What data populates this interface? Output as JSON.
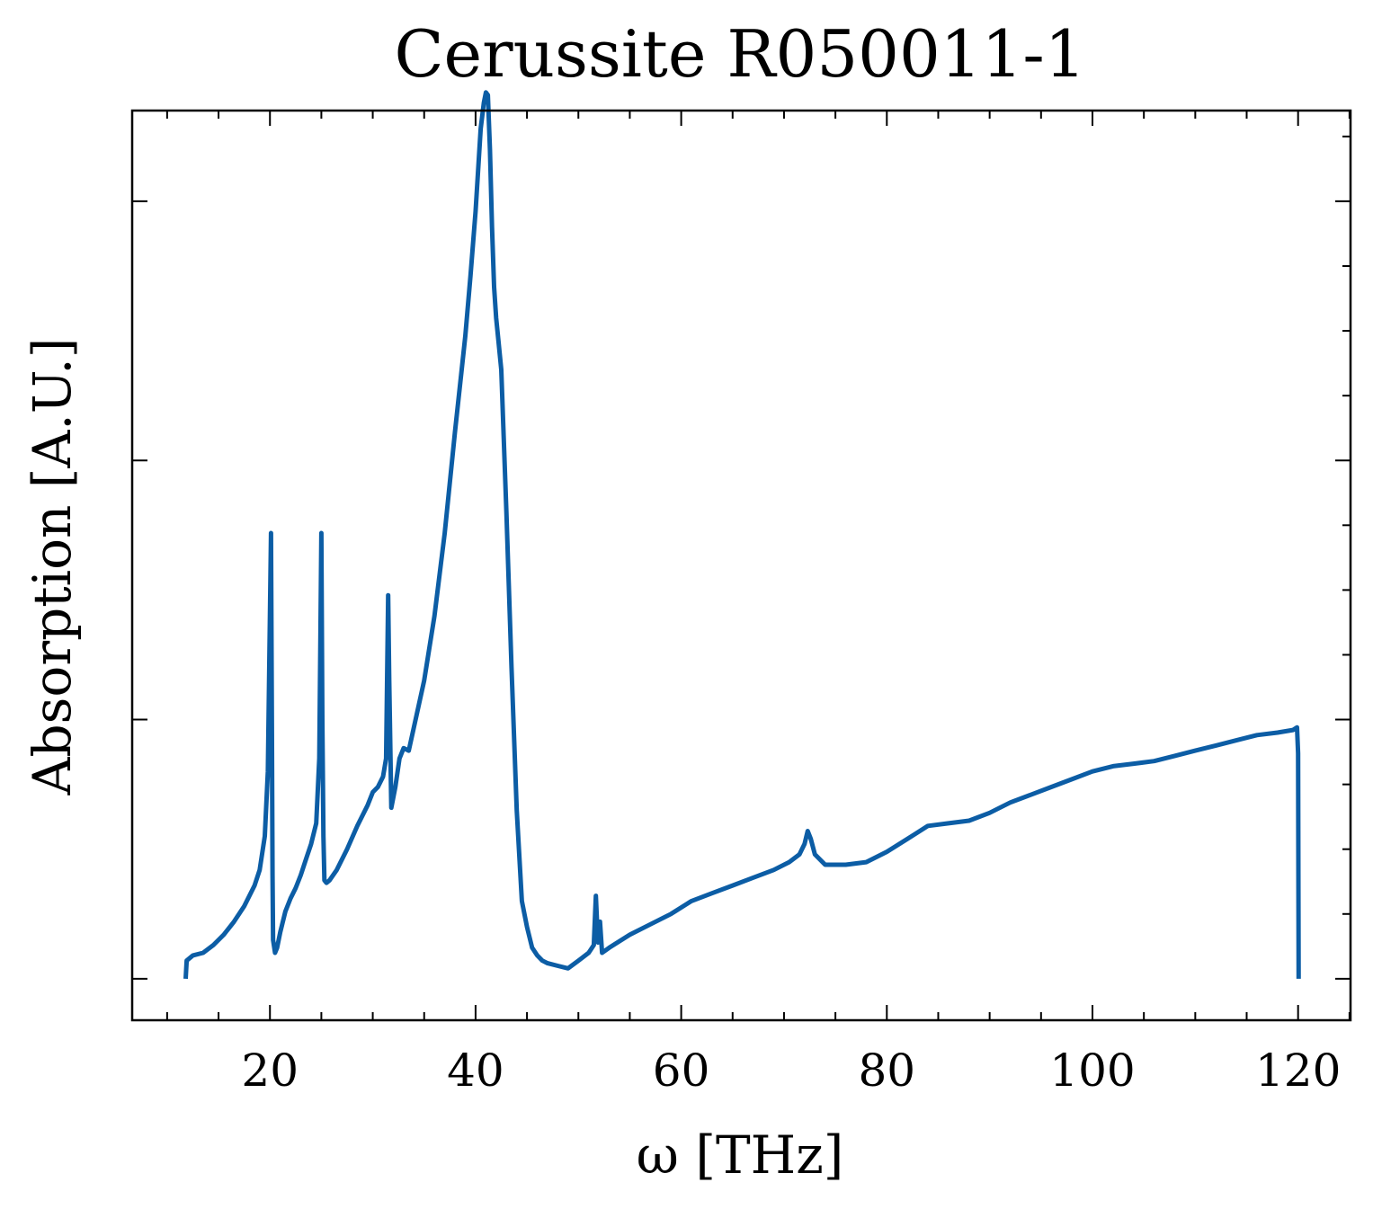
{
  "chart_data": {
    "type": "line",
    "title": "Cerussite R050011-1",
    "xlabel": "ω [THz]",
    "ylabel": "Absorption [A.U.]",
    "xlim": [
      6.6,
      125.1
    ],
    "ylim": [
      -0.16,
      3.35
    ],
    "x_ticks": [
      20,
      40,
      60,
      80,
      100,
      120
    ],
    "x_tick_labels": [
      "20",
      "40",
      "60",
      "80",
      "100",
      "120"
    ],
    "y_ticks": [
      0,
      1,
      2,
      3
    ],
    "y_tick_labels_shown": false,
    "grid": false,
    "legend": "none",
    "series": [
      {
        "color": "#0C5DA5",
        "x": [
          11.8,
          11.9,
          12.5,
          13.5,
          14.5,
          15.5,
          16.5,
          17.5,
          18.5,
          19.0,
          19.5,
          19.8,
          20.0,
          20.1,
          20.2,
          20.25,
          20.3,
          20.5,
          20.7,
          21.0,
          21.5,
          22.0,
          22.5,
          23.0,
          23.5,
          24.0,
          24.5,
          24.8,
          24.9,
          25.0,
          25.1,
          25.2,
          25.3,
          25.5,
          25.8,
          26.5,
          27.5,
          28.5,
          29.5,
          30.0,
          30.5,
          31.0,
          31.3,
          31.5,
          31.6,
          31.8,
          32.2,
          32.6,
          33.0,
          33.5,
          34.0,
          35.0,
          36.0,
          37.0,
          38.0,
          39.0,
          39.5,
          40.0,
          40.5,
          40.8,
          41.0,
          41.2,
          41.4,
          41.6,
          41.8,
          42.0,
          42.2,
          42.5,
          43.0,
          43.5,
          44.0,
          44.5,
          45.0,
          45.5,
          46.0,
          46.5,
          47.0,
          48.0,
          49.0,
          50.0,
          51.0,
          51.5,
          51.7,
          51.9,
          52.1,
          52.3,
          53.0,
          55.0,
          57.0,
          59.0,
          61.0,
          63.0,
          65.0,
          67.0,
          69.0,
          70.5,
          71.5,
          72.0,
          72.3,
          72.6,
          73.0,
          74.0,
          76.0,
          78.0,
          80.0,
          82.0,
          84.0,
          86.0,
          88.0,
          90.0,
          92.0,
          94.0,
          96.0,
          98.0,
          100.0,
          102.0,
          104.0,
          106.0,
          108.0,
          110.0,
          112.0,
          114.0,
          116.0,
          118.0,
          119.5,
          119.9,
          120.0,
          120.05
        ],
        "y": [
          0.0,
          0.07,
          0.09,
          0.1,
          0.13,
          0.17,
          0.22,
          0.28,
          0.36,
          0.42,
          0.55,
          0.8,
          1.4,
          1.72,
          0.9,
          0.4,
          0.15,
          0.1,
          0.12,
          0.18,
          0.26,
          0.31,
          0.35,
          0.4,
          0.46,
          0.52,
          0.6,
          0.85,
          1.3,
          1.72,
          1.0,
          0.55,
          0.38,
          0.37,
          0.38,
          0.42,
          0.5,
          0.59,
          0.67,
          0.72,
          0.74,
          0.78,
          0.85,
          1.48,
          1.15,
          0.66,
          0.74,
          0.85,
          0.89,
          0.88,
          0.97,
          1.15,
          1.4,
          1.72,
          2.11,
          2.48,
          2.71,
          2.96,
          3.28,
          3.38,
          3.42,
          3.41,
          3.2,
          2.9,
          2.67,
          2.55,
          2.47,
          2.35,
          1.8,
          1.2,
          0.65,
          0.3,
          0.2,
          0.12,
          0.09,
          0.07,
          0.06,
          0.05,
          0.04,
          0.07,
          0.1,
          0.13,
          0.32,
          0.14,
          0.22,
          0.1,
          0.12,
          0.17,
          0.21,
          0.25,
          0.3,
          0.33,
          0.36,
          0.39,
          0.42,
          0.45,
          0.48,
          0.52,
          0.57,
          0.54,
          0.48,
          0.44,
          0.44,
          0.45,
          0.49,
          0.54,
          0.59,
          0.6,
          0.61,
          0.64,
          0.68,
          0.71,
          0.74,
          0.77,
          0.8,
          0.82,
          0.83,
          0.84,
          0.86,
          0.88,
          0.9,
          0.92,
          0.94,
          0.95,
          0.96,
          0.97,
          0.87,
          0.0
        ]
      }
    ]
  }
}
